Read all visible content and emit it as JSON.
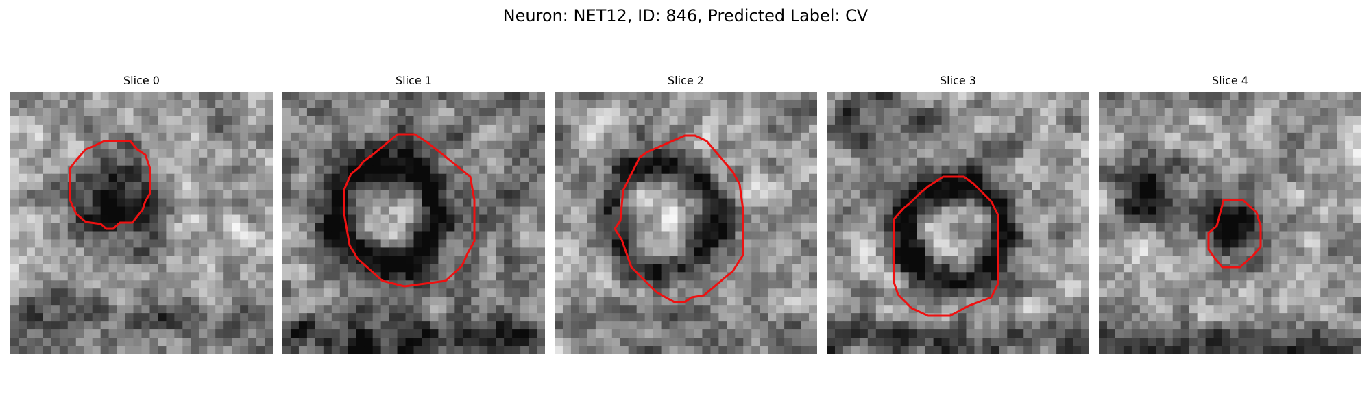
{
  "figure": {
    "title": "Neuron: NET12, ID: 846, Predicted Label: CV"
  },
  "panels": [
    {
      "title": "Slice 0"
    },
    {
      "title": "Slice 1"
    },
    {
      "title": "Slice 2"
    },
    {
      "title": "Slice 3"
    },
    {
      "title": "Slice 4"
    }
  ],
  "colors": {
    "contour": "#ee1111",
    "background": "#ffffff"
  }
}
